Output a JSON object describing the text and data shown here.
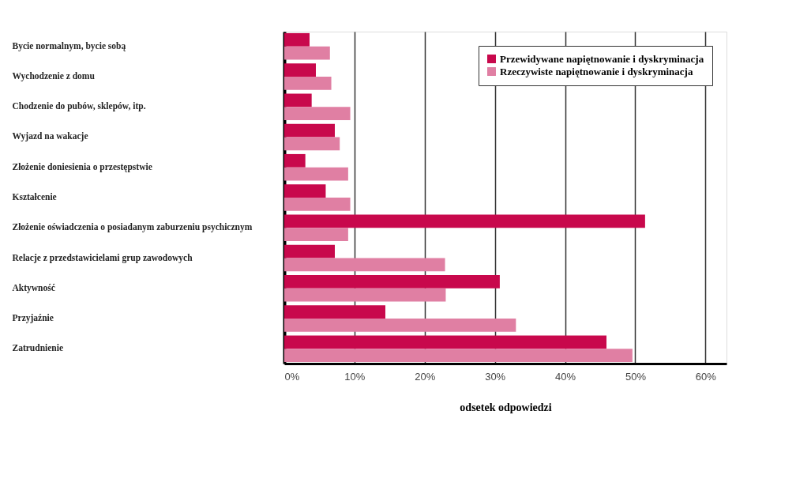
{
  "chart_data": {
    "type": "bar",
    "orientation": "horizontal",
    "xlabel": "odsetek odpowiedzi",
    "categories": [
      "Bycie normalnym, bycie sobą",
      "Wychodzenie z domu",
      "Chodzenie do pubów, sklepów, itp.",
      "Wyjazd na wakacje",
      "Złożenie doniesienia o przestępstwie",
      "Kształcenie",
      "Złożenie oświadczenia o posiadanym zaburzeniu psychicznym",
      "Relacje z przedstawicielami grup zawodowych",
      "Aktywność",
      "Przyjaźnie",
      "Zatrudnienie"
    ],
    "series": [
      {
        "name": "Przewidywane napiętnowanie i dyskryminacja",
        "color": "#c8084c",
        "values": [
          3.6,
          4.5,
          3.9,
          7.2,
          3.0,
          5.9,
          51.4,
          7.2,
          30.7,
          14.4,
          45.9
        ]
      },
      {
        "name": "Rzeczywiste napiętnowanie i dyskryminacja",
        "color": "#e07fa3",
        "values": [
          6.5,
          6.7,
          9.4,
          7.9,
          9.1,
          9.4,
          9.1,
          22.9,
          23.0,
          33.0,
          49.6
        ]
      }
    ],
    "xlim": [
      0,
      63
    ],
    "xticks": [
      {
        "value": 0,
        "label": "0%"
      },
      {
        "value": 10,
        "label": "10%"
      },
      {
        "value": 20,
        "label": "20%"
      },
      {
        "value": 30,
        "label": "30%"
      },
      {
        "value": 40,
        "label": "40%"
      },
      {
        "value": 50,
        "label": "50%"
      },
      {
        "value": 60,
        "label": "60%"
      }
    ],
    "grid": "x",
    "legend": "top right"
  }
}
